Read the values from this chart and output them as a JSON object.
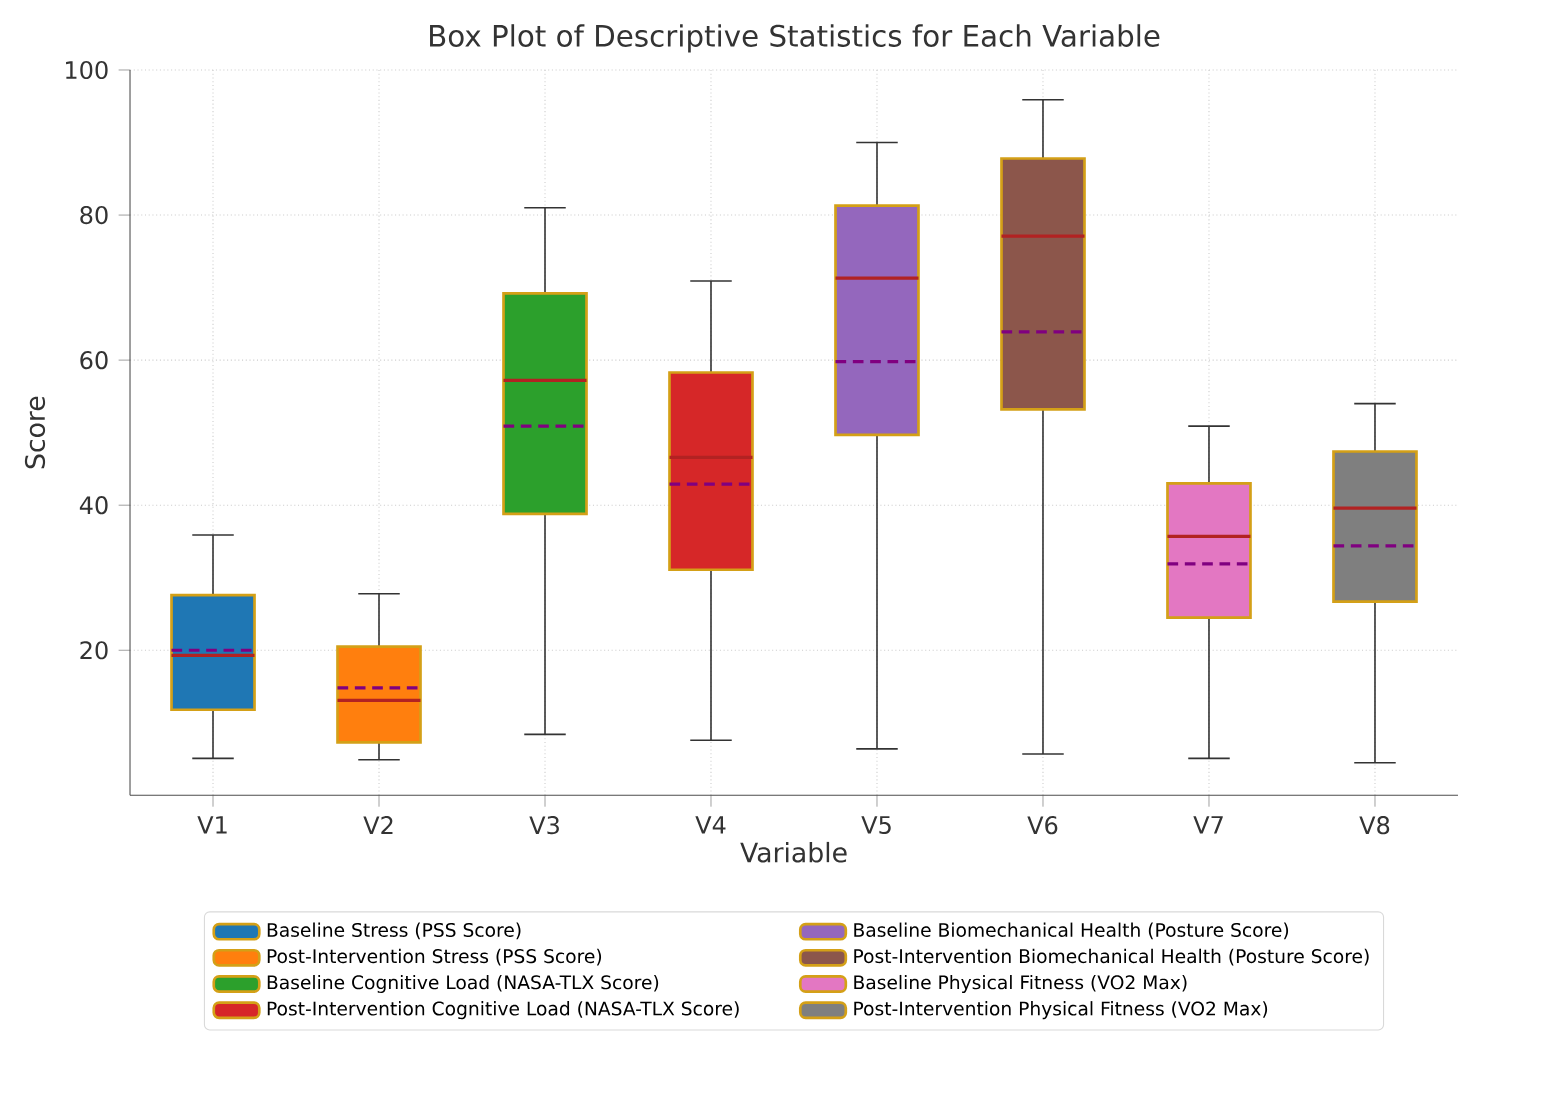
{
  "chart_data": {
    "type": "box",
    "title": "Box Plot of Descriptive Statistics for Each Variable",
    "xlabel": "Variable",
    "ylabel": "Score",
    "categories": [
      "V1",
      "V2",
      "V3",
      "V4",
      "V5",
      "V6",
      "V7",
      "V8"
    ],
    "ylim": [
      0,
      100
    ],
    "yticks": [
      20,
      40,
      60,
      80,
      100
    ],
    "grid": true,
    "legend": "bottom",
    "series": [
      {
        "name": "Baseline Stress (PSS Score)",
        "color": "#1f77b4",
        "boxes": [
          {
            "low": 5.1,
            "q1": 11.8,
            "median": 19.3,
            "q3": 27.6,
            "high": 35.9,
            "mean": 20.0
          },
          null,
          null,
          null,
          null,
          null,
          null,
          null
        ]
      },
      {
        "name": "Post-Intervention Stress (PSS Score)",
        "color": "#ff7f0e",
        "boxes": [
          null,
          {
            "low": 4.9,
            "q1": 7.3,
            "median": 13.1,
            "q3": 20.5,
            "high": 27.8,
            "mean": 14.8
          },
          null,
          null,
          null,
          null,
          null,
          null
        ]
      },
      {
        "name": "Baseline Cognitive Load (NASA-TLX Score)",
        "color": "#2ca02c",
        "boxes": [
          null,
          null,
          {
            "low": 8.4,
            "q1": 38.8,
            "median": 57.2,
            "q3": 69.2,
            "high": 81.0,
            "mean": 50.9
          },
          null,
          null,
          null,
          null,
          null
        ]
      },
      {
        "name": "Post-Intervention Cognitive Load (NASA-TLX Score)",
        "color": "#d62728",
        "boxes": [
          null,
          null,
          null,
          {
            "low": 7.6,
            "q1": 31.1,
            "median": 46.6,
            "q3": 58.3,
            "high": 70.9,
            "mean": 42.9
          },
          null,
          null,
          null,
          null
        ]
      },
      {
        "name": "Baseline Biomechanical Health (Posture Score)",
        "color": "#9467bd",
        "boxes": [
          null,
          null,
          null,
          null,
          {
            "low": 6.4,
            "q1": 49.7,
            "median": 71.3,
            "q3": 81.3,
            "high": 90.0,
            "mean": 59.8
          },
          null,
          null,
          null
        ]
      },
      {
        "name": "Post-Intervention Biomechanical Health (Posture Score)",
        "color": "#8c564b",
        "boxes": [
          null,
          null,
          null,
          null,
          null,
          {
            "low": 5.7,
            "q1": 53.2,
            "median": 77.1,
            "q3": 87.8,
            "high": 95.9,
            "mean": 63.9
          },
          null,
          null
        ]
      },
      {
        "name": "Baseline Physical Fitness (VO2 Max)",
        "color": "#e377c2",
        "boxes": [
          null,
          null,
          null,
          null,
          null,
          null,
          {
            "low": 5.1,
            "q1": 24.5,
            "median": 35.7,
            "q3": 43.0,
            "high": 50.9,
            "mean": 31.9
          },
          null
        ]
      },
      {
        "name": "Post-Intervention Physical Fitness (VO2 Max)",
        "color": "#7f7f7f",
        "boxes": [
          null,
          null,
          null,
          null,
          null,
          null,
          null,
          {
            "low": 4.5,
            "q1": 26.7,
            "median": 39.6,
            "q3": 47.4,
            "high": 54.0,
            "mean": 34.4
          }
        ]
      }
    ]
  }
}
